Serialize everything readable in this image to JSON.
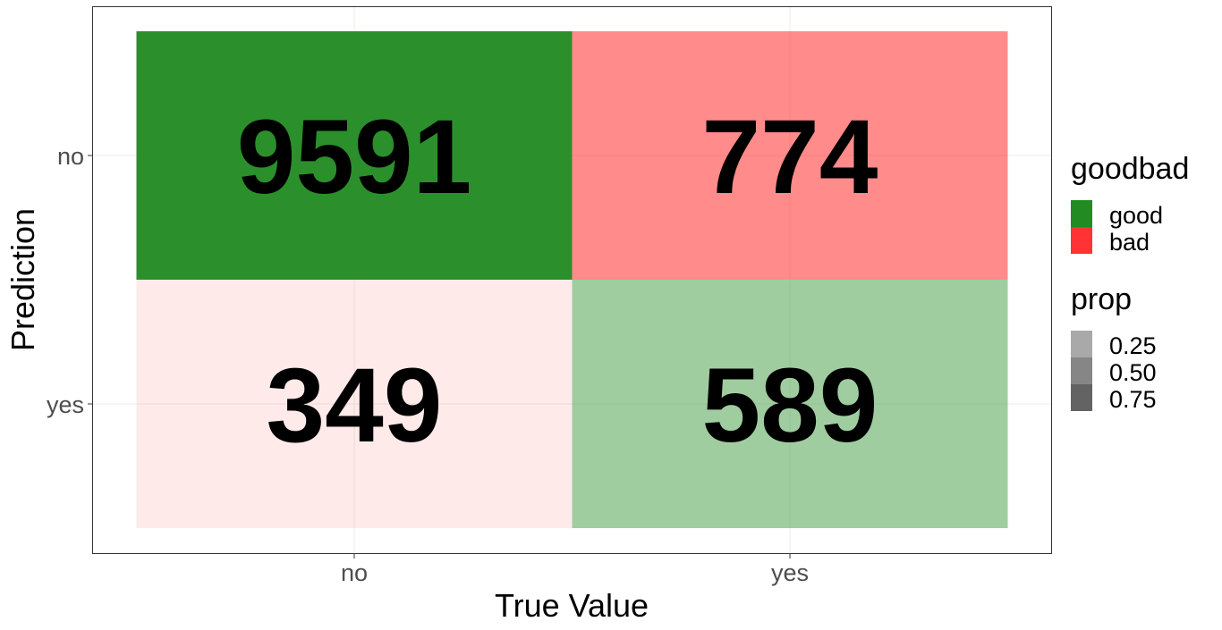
{
  "chart_data": {
    "type": "heatmap",
    "xlabel": "True Value",
    "ylabel": "Prediction",
    "x_categories": [
      "no",
      "yes"
    ],
    "y_categories": [
      "no",
      "yes"
    ],
    "cells": [
      {
        "x": "no",
        "y": "no",
        "value": 9591,
        "goodbad": "good",
        "prop": 0.96
      },
      {
        "x": "yes",
        "y": "no",
        "value": 774,
        "goodbad": "bad",
        "prop": 0.57
      },
      {
        "x": "no",
        "y": "yes",
        "value": 349,
        "goodbad": "bad",
        "prop": 0.04
      },
      {
        "x": "yes",
        "y": "yes",
        "value": 589,
        "goodbad": "good",
        "prop": 0.43
      }
    ],
    "grid": true,
    "legend": {
      "placement": "right",
      "fill": {
        "title": "goodbad",
        "items": [
          {
            "label": "good",
            "color": "#228B22"
          },
          {
            "label": "bad",
            "color": "#FF3333"
          }
        ]
      },
      "alpha": {
        "title": "prop",
        "items": [
          {
            "label": "0.25",
            "value": 0.25
          },
          {
            "label": "0.50",
            "value": 0.5
          },
          {
            "label": "0.75",
            "value": 0.75
          }
        ]
      }
    }
  }
}
